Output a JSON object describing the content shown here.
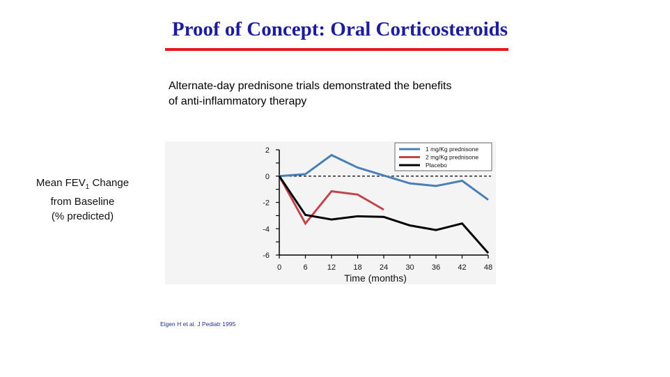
{
  "slide": {
    "title": "Proof of Concept: Oral Corticosteroids",
    "subtitle": "Alternate-day prednisone trials demonstrated the benefits of anti-inflammatory therapy",
    "citation": "Eigen H et al. J Pediatr 1995",
    "title_color": "#1c1c9c",
    "rule_color": "#e3161c"
  },
  "chart_data": {
    "type": "line",
    "xlabel": "Time (months)",
    "ylabel_lines": [
      "Mean FEV",
      "Change",
      "from Baseline",
      "(% predicted)"
    ],
    "ylabel_subscript": "1",
    "xlim": [
      0,
      48
    ],
    "ylim": [
      -6,
      2
    ],
    "x_ticks": [
      0,
      6,
      12,
      18,
      24,
      30,
      36,
      42,
      48
    ],
    "y_ticks": [
      2,
      0,
      -2,
      -4,
      -6
    ],
    "y_tick_labels": [
      "2",
      "0",
      "-2",
      "-4",
      "-6"
    ],
    "reference_line": 0,
    "legend_position": "top-right",
    "series": [
      {
        "name": "1 mg/Kg prednisone",
        "color": "#4a7fb5",
        "x": [
          0,
          6,
          12,
          18,
          24,
          30,
          36,
          42,
          48
        ],
        "values": [
          0,
          0.15,
          1.6,
          0.65,
          0.05,
          -0.55,
          -0.75,
          -0.35,
          -1.8
        ]
      },
      {
        "name": "2 mg/Kg prednisone",
        "color": "#c0454c",
        "x": [
          0,
          6,
          12,
          18,
          24
        ],
        "values": [
          0,
          -3.6,
          -1.15,
          -1.4,
          -2.55
        ]
      },
      {
        "name": "Placebo",
        "color": "#000000",
        "x": [
          0,
          6,
          12,
          18,
          24,
          30,
          36,
          42,
          48
        ],
        "values": [
          0,
          -2.95,
          -3.3,
          -3.05,
          -3.1,
          -3.75,
          -4.1,
          -3.6,
          -5.85
        ]
      }
    ]
  }
}
